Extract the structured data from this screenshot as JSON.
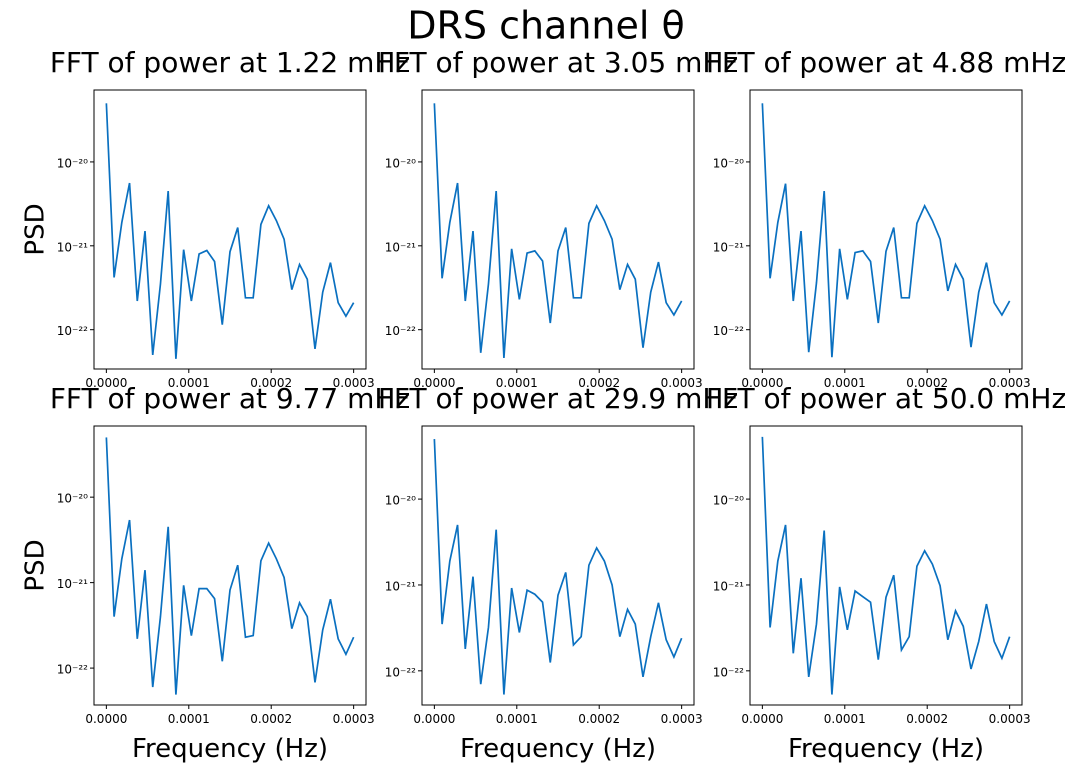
{
  "title": "DRS channel θ",
  "chart_data": [
    {
      "type": "line",
      "title": "FFT of power at 1.22 mHz",
      "ylabel": "PSD",
      "color": "#0a70c0",
      "log_y": true,
      "x": [
        0,
        9.375e-06,
        1.875e-05,
        2.8125e-05,
        3.75e-05,
        4.6875e-05,
        5.625e-05,
        6.5625e-05,
        7.5e-05,
        8.4375e-05,
        9.375e-05,
        0.000103125,
        0.0001125,
        0.000121875,
        0.00013125,
        0.000140625,
        0.00015,
        0.000159375,
        0.00016875,
        0.000178125,
        0.0001875,
        0.000196875,
        0.00020625,
        0.000215625,
        0.000225,
        0.000234375,
        0.00024375,
        0.000253125,
        0.0002625,
        0.000271875,
        0.00028125,
        0.000290625,
        0.0003
      ],
      "values": [
        5e-20,
        4.2e-22,
        1.9e-21,
        5.6e-21,
        2.2e-22,
        1.5e-21,
        5e-23,
        3.5e-22,
        4.5e-21,
        4.5e-23,
        9e-22,
        2.2e-22,
        8e-22,
        8.8e-22,
        6.5e-22,
        1.15e-22,
        8.5e-22,
        1.65e-21,
        2.4e-22,
        2.4e-22,
        1.8e-21,
        3e-21,
        2e-21,
        1.2e-21,
        3e-22,
        6e-22,
        4e-22,
        5.9e-23,
        2.8e-22,
        6.3e-22,
        2.1e-22,
        1.45e-22,
        2.1e-22
      ],
      "xlim": [
        -1.5e-05,
        0.000315
      ],
      "xticks": [
        {
          "value": 0,
          "label": "0.0000"
        },
        {
          "value": 0.0001,
          "label": "0.0001"
        },
        {
          "value": 0.0002,
          "label": "0.0002"
        },
        {
          "value": 0.0003,
          "label": "0.0003"
        }
      ],
      "ylim": [
        3.4e-23,
        7.2e-20
      ],
      "yticks": [
        {
          "value": 1e-22,
          "label": "10⁻²²"
        },
        {
          "value": 1e-21,
          "label": "10⁻²¹"
        },
        {
          "value": 1e-20,
          "label": "10⁻²⁰"
        }
      ]
    },
    {
      "type": "line",
      "title": "FFT of power at 3.05 mHz",
      "color": "#0a70c0",
      "log_y": true,
      "x": [
        0,
        9.375e-06,
        1.875e-05,
        2.8125e-05,
        3.75e-05,
        4.6875e-05,
        5.625e-05,
        6.5625e-05,
        7.5e-05,
        8.4375e-05,
        9.375e-05,
        0.000103125,
        0.0001125,
        0.000121875,
        0.00013125,
        0.000140625,
        0.00015,
        0.000159375,
        0.00016875,
        0.000178125,
        0.0001875,
        0.000196875,
        0.00020625,
        0.000215625,
        0.000225,
        0.000234375,
        0.00024375,
        0.000253125,
        0.0002625,
        0.000271875,
        0.00028125,
        0.000290625,
        0.0003
      ],
      "values": [
        5e-20,
        4.1e-22,
        1.9e-21,
        5.6e-21,
        2.2e-22,
        1.5e-21,
        5.3e-23,
        3.5e-22,
        4.5e-21,
        4.6e-23,
        9.2e-22,
        2.3e-22,
        8.2e-22,
        8.7e-22,
        6.6e-22,
        1.2e-22,
        8.7e-22,
        1.65e-21,
        2.4e-22,
        2.4e-22,
        1.85e-21,
        3e-21,
        2e-21,
        1.2e-21,
        3e-22,
        6e-22,
        4e-22,
        6.1e-23,
        2.8e-22,
        6.4e-22,
        2.1e-22,
        1.5e-22,
        2.2e-22
      ],
      "xlim": [
        -1.5e-05,
        0.000315
      ],
      "xticks": [
        {
          "value": 0,
          "label": "0.0000"
        },
        {
          "value": 0.0001,
          "label": "0.0001"
        },
        {
          "value": 0.0002,
          "label": "0.0002"
        },
        {
          "value": 0.0003,
          "label": "0.0003"
        }
      ],
      "ylim": [
        3.4e-23,
        7.2e-20
      ],
      "yticks": [
        {
          "value": 1e-22,
          "label": "10⁻²²"
        },
        {
          "value": 1e-21,
          "label": "10⁻²¹"
        },
        {
          "value": 1e-20,
          "label": "10⁻²⁰"
        }
      ]
    },
    {
      "type": "line",
      "title": "FFT of power at 4.88 mHz",
      "color": "#0a70c0",
      "log_y": true,
      "x": [
        0,
        9.375e-06,
        1.875e-05,
        2.8125e-05,
        3.75e-05,
        4.6875e-05,
        5.625e-05,
        6.5625e-05,
        7.5e-05,
        8.4375e-05,
        9.375e-05,
        0.000103125,
        0.0001125,
        0.000121875,
        0.00013125,
        0.000140625,
        0.00015,
        0.000159375,
        0.00016875,
        0.000178125,
        0.0001875,
        0.000196875,
        0.00020625,
        0.000215625,
        0.000225,
        0.000234375,
        0.00024375,
        0.000253125,
        0.0002625,
        0.000271875,
        0.00028125,
        0.000290625,
        0.0003
      ],
      "values": [
        5e-20,
        4.1e-22,
        1.9e-21,
        5.5e-21,
        2.2e-22,
        1.5e-21,
        5.4e-23,
        3.6e-22,
        4.5e-21,
        4.7e-23,
        9.2e-22,
        2.3e-22,
        8.3e-22,
        8.7e-22,
        6.5e-22,
        1.2e-22,
        8.6e-22,
        1.65e-21,
        2.4e-22,
        2.4e-22,
        1.85e-21,
        3e-21,
        2e-21,
        1.2e-21,
        2.9e-22,
        6e-22,
        4e-22,
        6.2e-23,
        2.8e-22,
        6.3e-22,
        2.1e-22,
        1.5e-22,
        2.2e-22
      ],
      "xlim": [
        -1.5e-05,
        0.000315
      ],
      "xticks": [
        {
          "value": 0,
          "label": "0.0000"
        },
        {
          "value": 0.0001,
          "label": "0.0001"
        },
        {
          "value": 0.0002,
          "label": "0.0002"
        },
        {
          "value": 0.0003,
          "label": "0.0003"
        }
      ],
      "ylim": [
        3.4e-23,
        7.2e-20
      ],
      "yticks": [
        {
          "value": 1e-22,
          "label": "10⁻²²"
        },
        {
          "value": 1e-21,
          "label": "10⁻²¹"
        },
        {
          "value": 1e-20,
          "label": "10⁻²⁰"
        }
      ]
    },
    {
      "type": "line",
      "title": "FFT of power at 9.77 mHz",
      "ylabel": "PSD",
      "xlabel": "Frequency (Hz)",
      "color": "#0a70c0",
      "log_y": true,
      "x": [
        0,
        9.375e-06,
        1.875e-05,
        2.8125e-05,
        3.75e-05,
        4.6875e-05,
        5.625e-05,
        6.5625e-05,
        7.5e-05,
        8.4375e-05,
        9.375e-05,
        0.000103125,
        0.0001125,
        0.000121875,
        0.00013125,
        0.000140625,
        0.00015,
        0.000159375,
        0.00016875,
        0.000178125,
        0.0001875,
        0.000196875,
        0.00020625,
        0.000215625,
        0.000225,
        0.000234375,
        0.00024375,
        0.000253125,
        0.0002625,
        0.000271875,
        0.00028125,
        0.000290625,
        0.0003
      ],
      "values": [
        5e-20,
        4e-22,
        1.9e-21,
        5.4e-21,
        2.2e-22,
        1.4e-21,
        6e-23,
        4e-22,
        4.5e-21,
        4.9e-23,
        9.3e-22,
        2.4e-22,
        8.5e-22,
        8.5e-22,
        6.5e-22,
        1.2e-22,
        8.2e-22,
        1.6e-21,
        2.3e-22,
        2.4e-22,
        1.8e-21,
        2.9e-21,
        1.9e-21,
        1.15e-21,
        2.9e-22,
        5.8e-22,
        4e-22,
        6.8e-23,
        2.8e-22,
        6.4e-22,
        2.2e-22,
        1.45e-22,
        2.3e-22
      ],
      "xlim": [
        -1.5e-05,
        0.000315
      ],
      "xticks": [
        {
          "value": 0,
          "label": "0.0000"
        },
        {
          "value": 0.0001,
          "label": "0.0001"
        },
        {
          "value": 0.0002,
          "label": "0.0002"
        },
        {
          "value": 0.0003,
          "label": "0.0003"
        }
      ],
      "ylim": [
        3.7e-23,
        6.8e-20
      ],
      "yticks": [
        {
          "value": 1e-22,
          "label": "10⁻²²"
        },
        {
          "value": 1e-21,
          "label": "10⁻²¹"
        },
        {
          "value": 1e-20,
          "label": "10⁻²⁰"
        }
      ]
    },
    {
      "type": "line",
      "title": "FFT of power at 29.9 mHz",
      "xlabel": "Frequency (Hz)",
      "color": "#0a70c0",
      "log_y": true,
      "x": [
        0,
        9.375e-06,
        1.875e-05,
        2.8125e-05,
        3.75e-05,
        4.6875e-05,
        5.625e-05,
        6.5625e-05,
        7.5e-05,
        8.4375e-05,
        9.375e-05,
        0.000103125,
        0.0001125,
        0.000121875,
        0.00013125,
        0.000140625,
        0.00015,
        0.000159375,
        0.00016875,
        0.000178125,
        0.0001875,
        0.000196875,
        0.00020625,
        0.000215625,
        0.000225,
        0.000234375,
        0.00024375,
        0.000253125,
        0.0002625,
        0.000271875,
        0.00028125,
        0.000290625,
        0.0003
      ],
      "values": [
        5e-20,
        3.5e-22,
        1.9e-21,
        5e-21,
        1.8e-22,
        1.25e-21,
        7e-23,
        3.2e-22,
        4.4e-21,
        5.3e-23,
        9.2e-22,
        2.8e-22,
        8.7e-22,
        7.8e-22,
        6.3e-22,
        1.25e-22,
        7.6e-22,
        1.4e-21,
        2e-22,
        2.5e-22,
        1.7e-21,
        2.7e-21,
        1.9e-21,
        1e-21,
        2.5e-22,
        5.2e-22,
        3.5e-22,
        8.5e-23,
        2.5e-22,
        6.2e-22,
        2.3e-22,
        1.45e-22,
        2.4e-22
      ],
      "xlim": [
        -1.5e-05,
        0.000315
      ],
      "xticks": [
        {
          "value": 0,
          "label": "0.0000"
        },
        {
          "value": 0.0001,
          "label": "0.0001"
        },
        {
          "value": 0.0002,
          "label": "0.0002"
        },
        {
          "value": 0.0003,
          "label": "0.0003"
        }
      ],
      "ylim": [
        4e-23,
        7.1e-20
      ],
      "yticks": [
        {
          "value": 1e-22,
          "label": "10⁻²²"
        },
        {
          "value": 1e-21,
          "label": "10⁻²¹"
        },
        {
          "value": 1e-20,
          "label": "10⁻²⁰"
        }
      ]
    },
    {
      "type": "line",
      "title": "FFT of power at 50.0 mHz",
      "xlabel": "Frequency (Hz)",
      "color": "#0a70c0",
      "log_y": true,
      "x": [
        0,
        9.375e-06,
        1.875e-05,
        2.8125e-05,
        3.75e-05,
        4.6875e-05,
        5.625e-05,
        6.5625e-05,
        7.5e-05,
        8.4375e-05,
        9.375e-05,
        0.000103125,
        0.0001125,
        0.000121875,
        0.00013125,
        0.000140625,
        0.00015,
        0.000159375,
        0.00016875,
        0.000178125,
        0.0001875,
        0.000196875,
        0.00020625,
        0.000215625,
        0.000225,
        0.000234375,
        0.00024375,
        0.000253125,
        0.0002625,
        0.000271875,
        0.00028125,
        0.000290625,
        0.0003
      ],
      "values": [
        5.3e-20,
        3.2e-22,
        1.9e-21,
        5e-21,
        1.6e-22,
        1.2e-21,
        8.5e-23,
        3.5e-22,
        4.3e-21,
        5.3e-23,
        9.5e-22,
        3e-22,
        8.5e-22,
        7.3e-22,
        6.3e-22,
        1.35e-22,
        7.2e-22,
        1.3e-21,
        1.75e-22,
        2.5e-22,
        1.65e-21,
        2.5e-21,
        1.75e-21,
        9.8e-22,
        2.3e-22,
        5e-22,
        3.3e-22,
        1.05e-22,
        2.2e-22,
        6e-22,
        2.2e-22,
        1.4e-22,
        2.5e-22
      ],
      "xlim": [
        -1.5e-05,
        0.000315
      ],
      "xticks": [
        {
          "value": 0,
          "label": "0.0000"
        },
        {
          "value": 0.0001,
          "label": "0.0001"
        },
        {
          "value": 0.0002,
          "label": "0.0002"
        },
        {
          "value": 0.0003,
          "label": "0.0003"
        }
      ],
      "ylim": [
        4e-23,
        7.1e-20
      ],
      "yticks": [
        {
          "value": 1e-22,
          "label": "10⁻²²"
        },
        {
          "value": 1e-21,
          "label": "10⁻²¹"
        },
        {
          "value": 1e-20,
          "label": "10⁻²⁰"
        }
      ]
    }
  ]
}
